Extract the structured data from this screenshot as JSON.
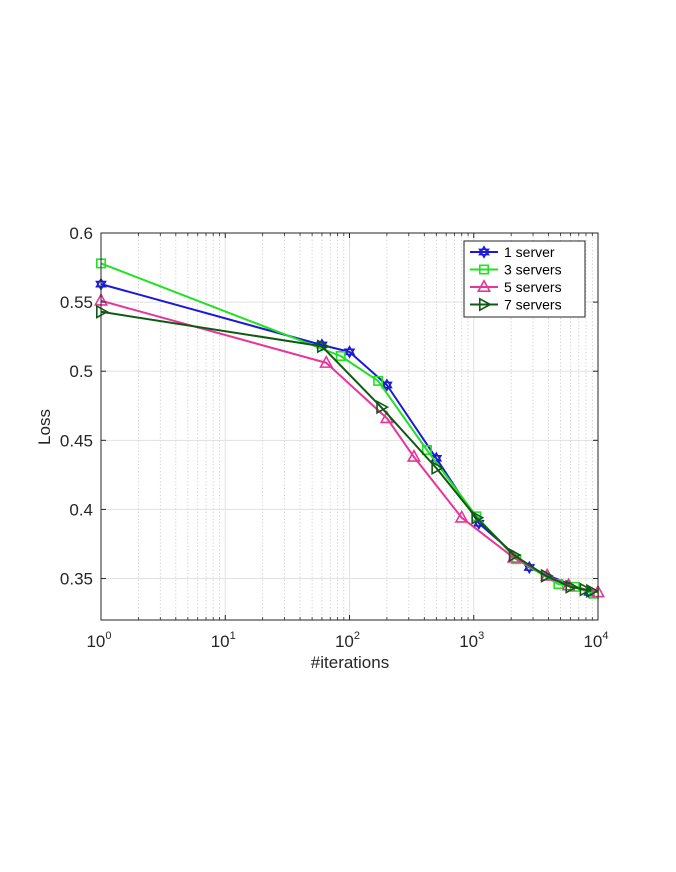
{
  "chart_data": {
    "type": "line",
    "xlabel": "#iterations",
    "ylabel": "Loss",
    "xscale": "log",
    "xlim": [
      1,
      10000
    ],
    "ylim": [
      0.32,
      0.6
    ],
    "xticks": [
      {
        "value": 1,
        "base": "10",
        "exp": "0"
      },
      {
        "value": 10,
        "base": "10",
        "exp": "1"
      },
      {
        "value": 100,
        "base": "10",
        "exp": "2"
      },
      {
        "value": 1000,
        "base": "10",
        "exp": "3"
      },
      {
        "value": 10000,
        "base": "10",
        "exp": "4"
      }
    ],
    "yticks": [
      {
        "value": 0.35,
        "label": "0.35"
      },
      {
        "value": 0.4,
        "label": "0.4"
      },
      {
        "value": 0.45,
        "label": "0.45"
      },
      {
        "value": 0.5,
        "label": "0.5"
      },
      {
        "value": 0.55,
        "label": "0.55"
      },
      {
        "value": 0.6,
        "label": "0.6"
      }
    ],
    "grid": true,
    "minor_grid": true,
    "legend_position": "top-right",
    "series": [
      {
        "name": "1 server",
        "color": "#1a1ad6",
        "marker": "hexagram",
        "x": [
          1,
          60,
          100,
          200,
          500,
          1100,
          2800,
          8500
        ],
        "y": [
          0.563,
          0.519,
          0.514,
          0.49,
          0.437,
          0.39,
          0.358,
          0.34
        ]
      },
      {
        "name": "3 servers",
        "color": "#22e022",
        "marker": "square",
        "x": [
          1,
          85,
          170,
          420,
          1050,
          2200,
          4800,
          6500,
          9300
        ],
        "y": [
          0.578,
          0.511,
          0.493,
          0.443,
          0.395,
          0.364,
          0.346,
          0.344,
          0.339
        ]
      },
      {
        "name": "5 servers",
        "color": "#e8359a",
        "marker": "triangle-up",
        "x": [
          1,
          65,
          200,
          330,
          800,
          2100,
          3900,
          5800,
          10000
        ],
        "y": [
          0.551,
          0.506,
          0.466,
          0.438,
          0.394,
          0.365,
          0.352,
          0.345,
          0.34
        ]
      },
      {
        "name": "7 servers",
        "color": "#0f5a12",
        "marker": "triangle-right",
        "x": [
          1,
          60,
          180,
          500,
          1050,
          2100,
          3800,
          6000,
          7800,
          8800
        ],
        "y": [
          0.543,
          0.518,
          0.474,
          0.43,
          0.394,
          0.367,
          0.352,
          0.344,
          0.342,
          0.341
        ]
      }
    ]
  }
}
